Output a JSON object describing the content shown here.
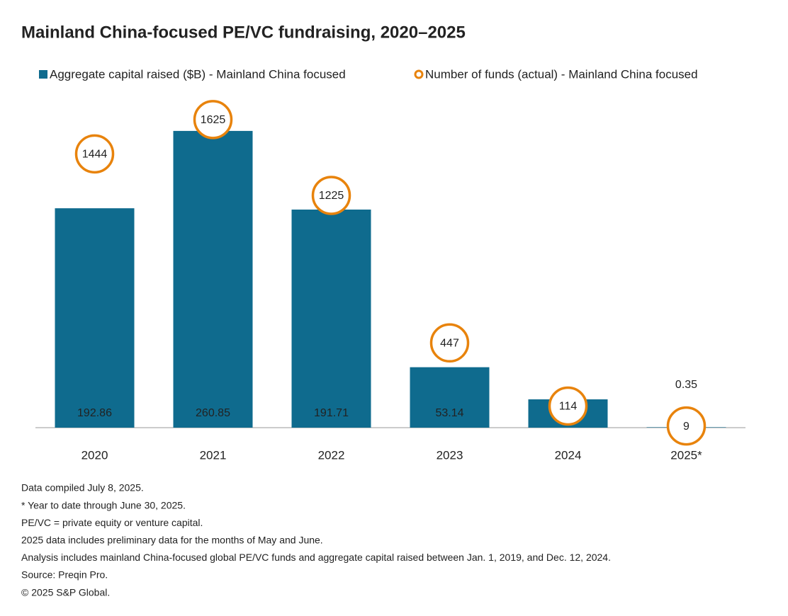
{
  "chart_data": {
    "type": "bar",
    "title": "Mainland China-focused PE/VC fundraising, 2020–2025",
    "categories": [
      "2020",
      "2021",
      "2022",
      "2023",
      "2024",
      "2025*"
    ],
    "series": [
      {
        "name": "Aggregate capital raised ($B) - Mainland China focused",
        "color": "#0f6b8e",
        "type": "bar",
        "values": [
          192.86,
          260.85,
          191.71,
          53.14,
          24.88,
          0.35
        ]
      },
      {
        "name": "Number of funds (actual) - Mainland China focused",
        "color": "#e8830c",
        "type": "circle",
        "axis": "y2",
        "values": [
          1444,
          1625,
          1225,
          447,
          114,
          9
        ]
      }
    ],
    "ylim": [
      0,
      300
    ],
    "y2lim": [
      0,
      1800
    ],
    "notes": [
      "Data compiled July 8, 2025.",
      "* Year to date through June 30, 2025.",
      "PE/VC = private equity or venture capital.",
      "2025 data includes preliminary data for the months of May and June.",
      "Analysis includes mainland China-focused global PE/VC funds and aggregate capital raised between Jan. 1, 2019, and Dec. 12, 2024.",
      "Source: Preqin Pro.",
      "© 2025 S&P Global."
    ]
  }
}
